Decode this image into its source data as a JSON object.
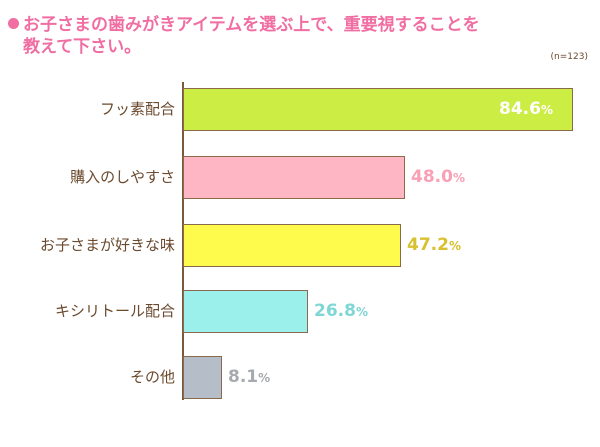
{
  "title": {
    "line1": "お子さまの歯みがきアイテムを選ぶ上で、重要視することを",
    "line2": "教えて下さい。"
  },
  "sample_size": "(n=123)",
  "chart_data": {
    "type": "bar",
    "orientation": "horizontal",
    "title": "お子さまの歯みがきアイテムを選ぶ上で、重要視することを教えて下さい。",
    "note": "(n=123)",
    "categories": [
      "フッ素配合",
      "購入のしやすさ",
      "お子さまが好きな味",
      "キシリトール配合",
      "その他"
    ],
    "values": [
      84.6,
      48.0,
      47.2,
      26.8,
      8.1
    ],
    "unit": "%",
    "xlabel": "",
    "ylabel": "",
    "xlim": [
      0,
      100
    ],
    "grid": false,
    "legend": "none"
  },
  "bars": [
    {
      "label": "フッ素配合",
      "value": "84.6",
      "pct": "%",
      "color": "#cbed44",
      "text_color": "#ffffff",
      "inside": true
    },
    {
      "label": "購入のしやすさ",
      "value": "48.0",
      "pct": "%",
      "color": "#feb6c4",
      "text_color": "#f9a0b6",
      "inside": false
    },
    {
      "label": "お子さまが好きな味",
      "value": "47.2",
      "pct": "%",
      "color": "#fffb4c",
      "text_color": "#d8c030",
      "inside": false
    },
    {
      "label": "キシリトール配合",
      "value": "26.8",
      "pct": "%",
      "color": "#9cf0ec",
      "text_color": "#7fd6d6",
      "inside": false
    },
    {
      "label": "その他",
      "value": "8.1",
      "pct": "%",
      "color": "#b5bec8",
      "text_color": "#a6aaae",
      "inside": false
    }
  ]
}
